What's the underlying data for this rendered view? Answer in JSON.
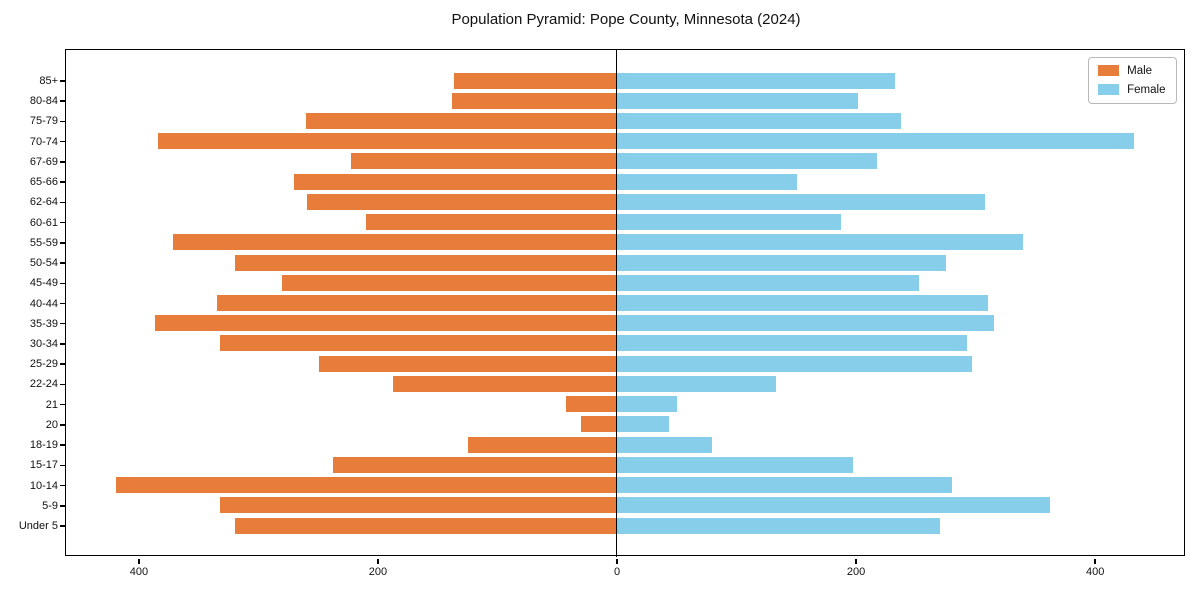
{
  "title": "Population Pyramid: Pope County, Minnesota (2024)",
  "legend": {
    "male_label": "Male",
    "female_label": "Female"
  },
  "colors": {
    "male": "#e87d3b",
    "female": "#87ceeb",
    "axis": "#000000"
  },
  "chart_data": {
    "type": "bar",
    "subtype": "population-pyramid",
    "title": "Population Pyramid: Pope County, Minnesota (2024)",
    "orientation": "horizontal",
    "grid": false,
    "legend_position": "upper right",
    "zero_line": true,
    "xlim": [
      -461,
      476
    ],
    "x_ticks": [
      {
        "value": -400,
        "label": "400"
      },
      {
        "value": -200,
        "label": "200"
      },
      {
        "value": 0,
        "label": "0"
      },
      {
        "value": 200,
        "label": "200"
      },
      {
        "value": 400,
        "label": "400"
      }
    ],
    "categories_top_to_bottom": [
      "85+",
      "80-84",
      "75-79",
      "70-74",
      "67-69",
      "65-66",
      "62-64",
      "60-61",
      "55-59",
      "50-54",
      "45-49",
      "40-44",
      "35-39",
      "30-34",
      "25-29",
      "22-24",
      "21",
      "20",
      "18-19",
      "15-17",
      "10-14",
      "5-9",
      "Under 5"
    ],
    "series": [
      {
        "name": "Male",
        "side": "left",
        "color": "#e87d3b",
        "values": [
          136,
          138,
          260,
          384,
          222,
          270,
          259,
          210,
          371,
          319,
          280,
          334,
          386,
          332,
          249,
          187,
          42,
          30,
          124,
          237,
          419,
          332,
          319
        ]
      },
      {
        "name": "Female",
        "side": "right",
        "color": "#87ceeb",
        "values": [
          233,
          202,
          238,
          433,
          218,
          151,
          308,
          188,
          340,
          276,
          253,
          311,
          316,
          293,
          297,
          133,
          51,
          44,
          80,
          198,
          281,
          363,
          271
        ]
      }
    ]
  }
}
